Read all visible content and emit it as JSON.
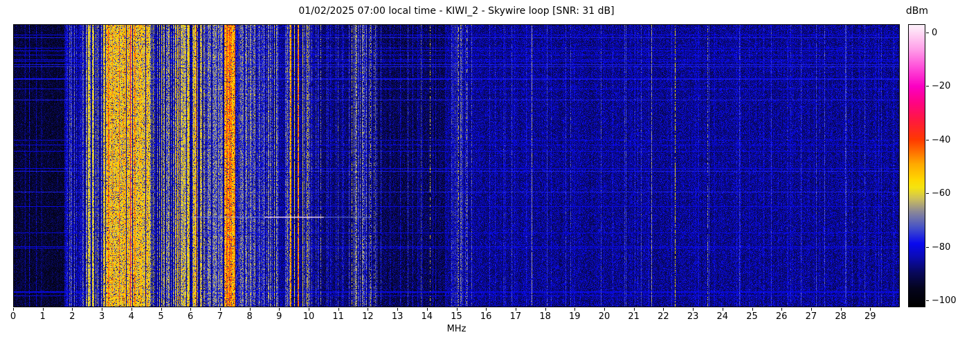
{
  "figure": {
    "background": "#ffffff"
  },
  "chart_data": {
    "type": "heatmap",
    "subtype": "radio-spectrum-waterfall",
    "title": "01/02/2025 07:00 local time - KIWI_2 - Skywire loop [SNR: 31 dB]",
    "xlabel": "MHz",
    "x_range_mhz": [
      0,
      30
    ],
    "x_ticks": [
      0,
      1,
      2,
      3,
      4,
      5,
      6,
      7,
      8,
      9,
      10,
      11,
      12,
      13,
      14,
      15,
      16,
      17,
      18,
      19,
      20,
      21,
      22,
      23,
      24,
      25,
      26,
      27,
      28,
      29
    ],
    "grid": false,
    "legend": "colorbar-right",
    "colorbar": {
      "label": "dBm",
      "tick_values": [
        0,
        -20,
        -40,
        -60,
        -80,
        -100
      ],
      "tick_labels": [
        "0",
        "−20",
        "−40",
        "−60",
        "−80",
        "−100"
      ],
      "vmax": 3,
      "vmin": -102.5,
      "colormap_stops": [
        [
          -102.5,
          "#000000"
        ],
        [
          -96,
          "#04041c"
        ],
        [
          -90,
          "#08085a"
        ],
        [
          -84,
          "#0a0ab4"
        ],
        [
          -79,
          "#0808f0"
        ],
        [
          -73,
          "#4652c8"
        ],
        [
          -67,
          "#8b8898"
        ],
        [
          -62,
          "#cfc258"
        ],
        [
          -58,
          "#f5e411"
        ],
        [
          -55,
          "#ffd800"
        ],
        [
          -49,
          "#ffa800"
        ],
        [
          -44,
          "#ff6a00"
        ],
        [
          -40,
          "#ff3a00"
        ],
        [
          -33,
          "#ff1a3c"
        ],
        [
          -26,
          "#ff0384"
        ],
        [
          -20,
          "#fb00c3"
        ],
        [
          -13,
          "#ff4cd9"
        ],
        [
          -6,
          "#ff9fe9"
        ],
        [
          0,
          "#ffd8f4"
        ],
        [
          3,
          "#fdf2fb"
        ]
      ]
    },
    "noise_regions": [
      {
        "f": [
          0,
          1.7
        ],
        "floor": -97,
        "speckle": 10
      },
      {
        "f": [
          1.7,
          10.2
        ],
        "floor": -91,
        "speckle": 13
      },
      {
        "f": [
          10.2,
          12.2
        ],
        "floor": -93,
        "speckle": 12
      },
      {
        "f": [
          12.2,
          14.6
        ],
        "floor": -95,
        "speckle": 12
      },
      {
        "f": [
          14.6,
          30
        ],
        "floor": -91,
        "speckle": 13
      }
    ],
    "activity_bands": [
      {
        "f": [
          0.3,
          1.7
        ],
        "p": 0.05,
        "level": -82,
        "var": 4
      },
      {
        "f": [
          1.75,
          2.35
        ],
        "p": 0.38,
        "level": -76,
        "var": 6
      },
      {
        "f": [
          2.38,
          2.82
        ],
        "p": 0.6,
        "level": -64,
        "var": 8
      },
      {
        "f": [
          2.82,
          3.02
        ],
        "p": 0.45,
        "level": -73,
        "var": 6
      },
      {
        "f": [
          3.02,
          4.62
        ],
        "p": 0.95,
        "level": -56,
        "var": 9
      },
      {
        "f": [
          4.62,
          5.45
        ],
        "p": 0.6,
        "level": -67,
        "var": 9
      },
      {
        "f": [
          5.45,
          6.45
        ],
        "p": 0.72,
        "level": -61,
        "var": 9
      },
      {
        "f": [
          6.45,
          7.1
        ],
        "p": 0.5,
        "level": -70,
        "var": 8
      },
      {
        "f": [
          7.1,
          7.5
        ],
        "p": 0.92,
        "level": -50,
        "var": 7
      },
      {
        "f": [
          7.5,
          8.8
        ],
        "p": 0.5,
        "level": -72,
        "var": 8
      },
      {
        "f": [
          8.8,
          10.1
        ],
        "p": 0.38,
        "level": -70,
        "var": 8
      },
      {
        "f": [
          10.1,
          11.3
        ],
        "p": 0.18,
        "level": -79,
        "var": 5
      },
      {
        "f": [
          11.3,
          12.3
        ],
        "p": 0.32,
        "level": -72,
        "var": 7
      },
      {
        "f": [
          12.3,
          13.4
        ],
        "p": 0.1,
        "level": -82,
        "var": 4
      },
      {
        "f": [
          13.4,
          14.6
        ],
        "p": 0.12,
        "level": -79,
        "var": 5
      },
      {
        "f": [
          14.8,
          15.6
        ],
        "p": 0.3,
        "level": -73,
        "var": 7
      },
      {
        "f": [
          16,
          30
        ],
        "p": 0.07,
        "level": -80,
        "var": 4
      }
    ],
    "spectral_lines": [
      {
        "f": 0.75,
        "level": -84,
        "w": 1
      },
      {
        "f": 1.95,
        "level": -76,
        "w": 1
      },
      {
        "f": 2.05,
        "level": -74,
        "w": 1
      },
      {
        "f": 2.5,
        "level": -58,
        "w": 3
      },
      {
        "f": 2.64,
        "level": -59,
        "w": 2
      },
      {
        "f": 3.2,
        "level": -44,
        "w": 2
      },
      {
        "f": 3.33,
        "level": -48,
        "w": 1
      },
      {
        "f": 3.57,
        "level": -43,
        "w": 1
      },
      {
        "f": 3.75,
        "level": -50,
        "w": 2
      },
      {
        "f": 3.95,
        "level": -32,
        "w": 1
      },
      {
        "f": 4.08,
        "level": -46,
        "w": 2
      },
      {
        "f": 4.3,
        "level": -50,
        "w": 2
      },
      {
        "f": 4.5,
        "level": -52,
        "w": 1
      },
      {
        "f": 5.0,
        "level": -60,
        "w": 1
      },
      {
        "f": 5.9,
        "level": -55,
        "w": 2
      },
      {
        "f": 6.07,
        "level": -52,
        "w": 1
      },
      {
        "f": 6.17,
        "level": -46,
        "w": 1
      },
      {
        "f": 6.3,
        "level": -57,
        "w": 1
      },
      {
        "f": 7.2,
        "level": -40,
        "w": 2
      },
      {
        "f": 7.3,
        "level": -42,
        "w": 2
      },
      {
        "f": 7.41,
        "level": -55,
        "w": 1
      },
      {
        "f": 8.0,
        "level": -68,
        "w": 1
      },
      {
        "f": 9.35,
        "level": -48,
        "w": 2
      },
      {
        "f": 9.5,
        "level": -56,
        "w": 1
      },
      {
        "f": 9.62,
        "level": -44,
        "w": 2
      },
      {
        "f": 9.77,
        "level": -60,
        "w": 1
      },
      {
        "f": 9.95,
        "level": -57,
        "w": 1,
        "dash": 0.75
      },
      {
        "f": 10.4,
        "level": -67,
        "w": 1,
        "dash": 0.6
      },
      {
        "f": 10.65,
        "level": -79,
        "w": 1
      },
      {
        "f": 10.9,
        "level": -78,
        "w": 1
      },
      {
        "f": 11.45,
        "level": -62,
        "w": 1,
        "dash": 0.65
      },
      {
        "f": 11.62,
        "level": -64,
        "w": 1,
        "dash": 0.5
      },
      {
        "f": 11.85,
        "level": -67,
        "w": 1,
        "dash": 0.5
      },
      {
        "f": 12.08,
        "level": -63,
        "w": 1,
        "dash": 0.5
      },
      {
        "f": 12.2,
        "level": -68,
        "w": 1,
        "dash": 0.5
      },
      {
        "f": 14.1,
        "level": -62,
        "w": 1,
        "dash": 0.45
      },
      {
        "f": 15.05,
        "level": -63,
        "w": 1,
        "dash": 0.5
      },
      {
        "f": 15.2,
        "level": -74,
        "w": 1
      },
      {
        "f": 15.33,
        "level": -64,
        "w": 1,
        "dash": 0.5
      },
      {
        "f": 16.3,
        "level": -80,
        "w": 1
      },
      {
        "f": 17.55,
        "level": -66,
        "w": 1,
        "smooth": true
      },
      {
        "f": 18.2,
        "level": -81,
        "w": 1
      },
      {
        "f": 19.0,
        "level": -82,
        "w": 1
      },
      {
        "f": 19.9,
        "level": -75,
        "w": 1
      },
      {
        "f": 20.3,
        "level": -81,
        "w": 1
      },
      {
        "f": 21.6,
        "level": -67,
        "w": 1,
        "smooth": true
      },
      {
        "f": 22.4,
        "level": -57,
        "w": 1,
        "dash": 0.68
      },
      {
        "f": 23.5,
        "level": -67,
        "w": 1,
        "dash": 0.55
      },
      {
        "f": 24.6,
        "level": -80,
        "w": 1
      },
      {
        "f": 25.4,
        "level": -81,
        "w": 1
      },
      {
        "f": 26.2,
        "level": -80,
        "w": 1
      },
      {
        "f": 27.3,
        "level": -81,
        "w": 1
      },
      {
        "f": 28.4,
        "level": -80,
        "w": 1
      },
      {
        "f": 29.2,
        "level": -81,
        "w": 1
      }
    ],
    "horizontal_artifacts": [
      {
        "y_frac": 0.681,
        "f_range": [
          6.0,
          12.1
        ],
        "color": "rgba(160,185,255,0.40)"
      },
      {
        "y_frac": 0.681,
        "f_range": [
          8.5,
          10.5
        ],
        "color": "rgba(255,215,235,0.75)"
      }
    ],
    "streak_row_count": 26,
    "render_seed": 987654321
  }
}
